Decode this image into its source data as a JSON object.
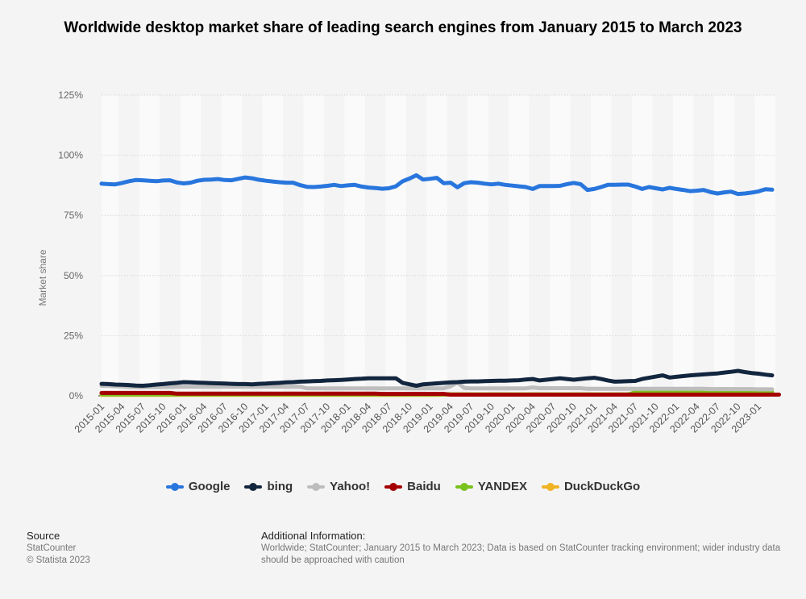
{
  "chart_data": {
    "type": "line",
    "title": "Worldwide desktop market share of leading search engines from January 2015 to March 2023",
    "ylabel": "Market share",
    "xlabel": "",
    "ylim": [
      0,
      125
    ],
    "yticks": [
      "0%",
      "25%",
      "50%",
      "75%",
      "100%",
      "125%"
    ],
    "ytick_values": [
      0,
      25,
      50,
      75,
      100,
      125
    ],
    "x_start": "2015-01",
    "x_end": "2023-03",
    "xtick_labels": [
      "2015-01",
      "2015-04",
      "2015-07",
      "2015-10",
      "2016-01",
      "2016-04",
      "2016-07",
      "2016-10",
      "2017-01",
      "2017-04",
      "2017-07",
      "2017-10",
      "2018-01",
      "2018-04",
      "2018-07",
      "2018-10",
      "2019-01",
      "2019-04",
      "2019-07",
      "2019-10",
      "2020-01",
      "2020-04",
      "2020-07",
      "2020-10",
      "2021-01",
      "2021-04",
      "2021-07",
      "2021-10",
      "2022-01",
      "2022-04",
      "2022-07",
      "2022-10",
      "2023-01"
    ],
    "grid": true,
    "legend_position": "bottom",
    "series": [
      {
        "name": "Google",
        "color": "#2876dd",
        "values": [
          88.2,
          88.0,
          87.9,
          88.5,
          89.2,
          89.7,
          89.6,
          89.4,
          89.2,
          89.5,
          89.6,
          88.7,
          88.3,
          88.6,
          89.4,
          89.8,
          89.9,
          90.1,
          89.7,
          89.6,
          90.2,
          90.8,
          90.4,
          89.8,
          89.4,
          89.1,
          88.8,
          88.6,
          88.6,
          87.6,
          86.9,
          86.8,
          87.0,
          87.3,
          87.7,
          87.2,
          87.5,
          87.7,
          87.0,
          86.6,
          86.4,
          86.1,
          86.3,
          87.1,
          89.2,
          90.3,
          91.7,
          89.9,
          90.2,
          90.6,
          88.4,
          88.6,
          86.7,
          88.4,
          88.8,
          88.6,
          88.2,
          87.9,
          88.2,
          87.7,
          87.4,
          87.1,
          86.8,
          86.0,
          87.2,
          87.2,
          87.2,
          87.3,
          88.0,
          88.5,
          88.0,
          85.6,
          86.0,
          86.8,
          87.7,
          87.7,
          87.8,
          87.8,
          87.0,
          86.0,
          86.8,
          86.3,
          85.8,
          86.5,
          86.0,
          85.6,
          85.1,
          85.3,
          85.6,
          84.7,
          84.1,
          84.6,
          84.9,
          83.9,
          84.1,
          84.5,
          85.0,
          85.9,
          85.7
        ]
      },
      {
        "name": "bing",
        "color": "#13263f",
        "values": [
          5.0,
          4.9,
          4.7,
          4.6,
          4.5,
          4.3,
          4.2,
          4.4,
          4.7,
          4.9,
          5.2,
          5.4,
          5.7,
          5.6,
          5.5,
          5.4,
          5.3,
          5.2,
          5.1,
          5.0,
          4.9,
          4.9,
          4.8,
          5.0,
          5.1,
          5.3,
          5.4,
          5.6,
          5.7,
          5.9,
          6.0,
          6.1,
          6.2,
          6.4,
          6.5,
          6.6,
          6.8,
          7.0,
          7.1,
          7.3,
          7.3,
          7.3,
          7.3,
          7.3,
          5.4,
          4.8,
          4.2,
          4.8,
          5.0,
          5.2,
          5.4,
          5.6,
          5.7,
          5.9,
          6.0,
          6.0,
          6.1,
          6.2,
          6.3,
          6.3,
          6.4,
          6.5,
          6.8,
          7.0,
          6.4,
          6.7,
          7.0,
          7.3,
          7.0,
          6.7,
          7.0,
          7.3,
          7.5,
          7.0,
          6.4,
          5.9,
          6.0,
          6.1,
          6.2,
          7.0,
          7.5,
          8.0,
          8.5,
          7.6,
          7.9,
          8.2,
          8.5,
          8.7,
          8.9,
          9.1,
          9.3,
          9.7,
          10.0,
          10.4,
          9.9,
          9.5,
          9.2,
          8.8,
          8.5
        ]
      },
      {
        "name": "Yahoo!",
        "color": "#bdbdbd",
        "values": [
          4.2,
          4.1,
          4.0,
          3.9,
          3.7,
          3.6,
          3.5,
          3.6,
          3.6,
          3.7,
          3.7,
          3.8,
          3.8,
          3.8,
          3.8,
          3.8,
          3.8,
          3.8,
          3.8,
          3.8,
          3.8,
          3.8,
          3.8,
          3.8,
          3.8,
          3.8,
          3.8,
          3.8,
          3.8,
          3.8,
          3.1,
          3.1,
          3.1,
          3.1,
          3.1,
          3.1,
          3.1,
          3.1,
          3.1,
          3.1,
          3.1,
          3.1,
          3.1,
          3.1,
          3.1,
          3.1,
          3.1,
          3.1,
          3.1,
          3.1,
          3.1,
          4.0,
          5.6,
          3.3,
          3.1,
          3.1,
          3.1,
          3.1,
          3.1,
          3.1,
          3.1,
          3.1,
          3.1,
          3.5,
          3.2,
          3.2,
          3.2,
          3.2,
          3.2,
          3.2,
          3.2,
          2.9,
          2.9,
          2.9,
          2.9,
          2.9,
          2.9,
          2.9,
          2.9,
          2.9,
          2.9,
          2.9,
          2.9,
          2.9,
          2.9,
          2.9,
          2.9,
          2.9,
          2.9,
          2.8,
          2.8,
          2.8,
          2.8,
          2.8,
          2.8,
          2.8,
          2.7,
          2.7,
          2.7
        ]
      },
      {
        "name": "Baidu",
        "color": "#a40000",
        "values": [
          1.2,
          1.2,
          1.2,
          1.2,
          1.2,
          1.2,
          1.2,
          1.2,
          1.2,
          1.2,
          1.2,
          0.9,
          0.9,
          0.9,
          0.9,
          0.9,
          0.9,
          0.9,
          0.9,
          0.9,
          0.9,
          0.9,
          0.9,
          0.9,
          0.9,
          0.9,
          0.9,
          0.9,
          0.9,
          0.9,
          0.9,
          0.9,
          0.9,
          0.9,
          0.9,
          0.9,
          0.9,
          0.9,
          0.9,
          0.9,
          0.9,
          0.8,
          0.8,
          0.8,
          0.8,
          0.8,
          0.8,
          0.8,
          0.8,
          0.8,
          0.8,
          0.5,
          0.5,
          0.5,
          0.5,
          0.5,
          0.5,
          0.5,
          0.5,
          0.5,
          0.5,
          0.5,
          0.5,
          0.5,
          0.5,
          0.5,
          0.5,
          0.5,
          0.5,
          0.5,
          0.5,
          0.5,
          0.5,
          0.5,
          0.5,
          0.5,
          0.5,
          0.5,
          0.5,
          0.5,
          0.5,
          0.5,
          0.5,
          0.5,
          0.5,
          0.5,
          0.5,
          0.5,
          0.5,
          0.5,
          0.5,
          0.5,
          0.5,
          0.5,
          0.5,
          0.5,
          0.5,
          0.5,
          0.5,
          0.5
        ]
      },
      {
        "name": "YANDEX",
        "color": "#7ac21c",
        "values": [
          0.6,
          0.6,
          0.6,
          0.6,
          0.6,
          0.6,
          0.6,
          0.6,
          0.6,
          0.6,
          0.6,
          0.6,
          0.6,
          0.6,
          0.6,
          0.6,
          0.6,
          0.6,
          0.6,
          0.6,
          0.6,
          0.6,
          0.6,
          0.6,
          0.6,
          0.6,
          0.6,
          0.6,
          0.6,
          0.6,
          0.6,
          0.6,
          0.6,
          0.6,
          0.6,
          0.6,
          0.6,
          0.6,
          0.6,
          0.6,
          0.6,
          0.6,
          0.6,
          0.6,
          0.6,
          0.6,
          0.6,
          0.6,
          0.6,
          0.6,
          0.6,
          0.6,
          0.6,
          0.6,
          0.6,
          0.6,
          0.6,
          0.6,
          0.6,
          0.6,
          0.6,
          0.6,
          0.6,
          0.6,
          0.6,
          0.6,
          0.6,
          0.6,
          0.6,
          0.6,
          0.6,
          0.6,
          0.6,
          0.6,
          0.6,
          0.6,
          0.6,
          0.6,
          1.5,
          1.5,
          1.5,
          1.5,
          1.5,
          1.5,
          1.5,
          1.5,
          1.5,
          1.5,
          1.5,
          1.5,
          1.5,
          1.5,
          1.5,
          1.5,
          1.5,
          1.5,
          1.5,
          1.5,
          1.5
        ]
      },
      {
        "name": "DuckDuckGo",
        "color": "#f0b323",
        "values": [
          0.4,
          0.4,
          0.4,
          0.4,
          0.4,
          0.4,
          0.4,
          0.4,
          0.4,
          0.4,
          0.4,
          0.4,
          0.4,
          0.4,
          0.4,
          0.4,
          0.4,
          0.4,
          0.4,
          0.4,
          0.4,
          0.4,
          0.4,
          0.4,
          0.4,
          0.4,
          0.4,
          0.4,
          0.4,
          0.4,
          0.4,
          0.4,
          0.4,
          0.4,
          0.4,
          0.4,
          0.4,
          0.4,
          0.4,
          0.4,
          0.4,
          0.4,
          0.4,
          0.4,
          0.4,
          0.4,
          0.4,
          0.4,
          0.4,
          0.4,
          0.6,
          0.6,
          0.6,
          0.6,
          0.6,
          0.6,
          0.6,
          0.6,
          0.6,
          0.6,
          0.6,
          0.6,
          0.6,
          0.6,
          0.6,
          0.6,
          0.6,
          0.6,
          0.6,
          0.6,
          0.6,
          0.6,
          0.6,
          0.6,
          0.6,
          0.6,
          0.6,
          0.6,
          0.6,
          0.6,
          0.6,
          0.6,
          0.6,
          0.6,
          0.6,
          0.6,
          0.6,
          0.6,
          0.6,
          0.6,
          0.6,
          0.6,
          0.6,
          0.6,
          0.6,
          0.6,
          0.6,
          0.6,
          0.6
        ]
      }
    ]
  },
  "footer": {
    "source_heading": "Source",
    "source_lines": [
      "StatCounter",
      "© Statista 2023"
    ],
    "info_heading": "Additional Information:",
    "info_text": "Worldwide; StatCounter; January 2015 to March 2023; Data is based on StatCounter tracking environment; wider industry data should be approached with caution"
  }
}
